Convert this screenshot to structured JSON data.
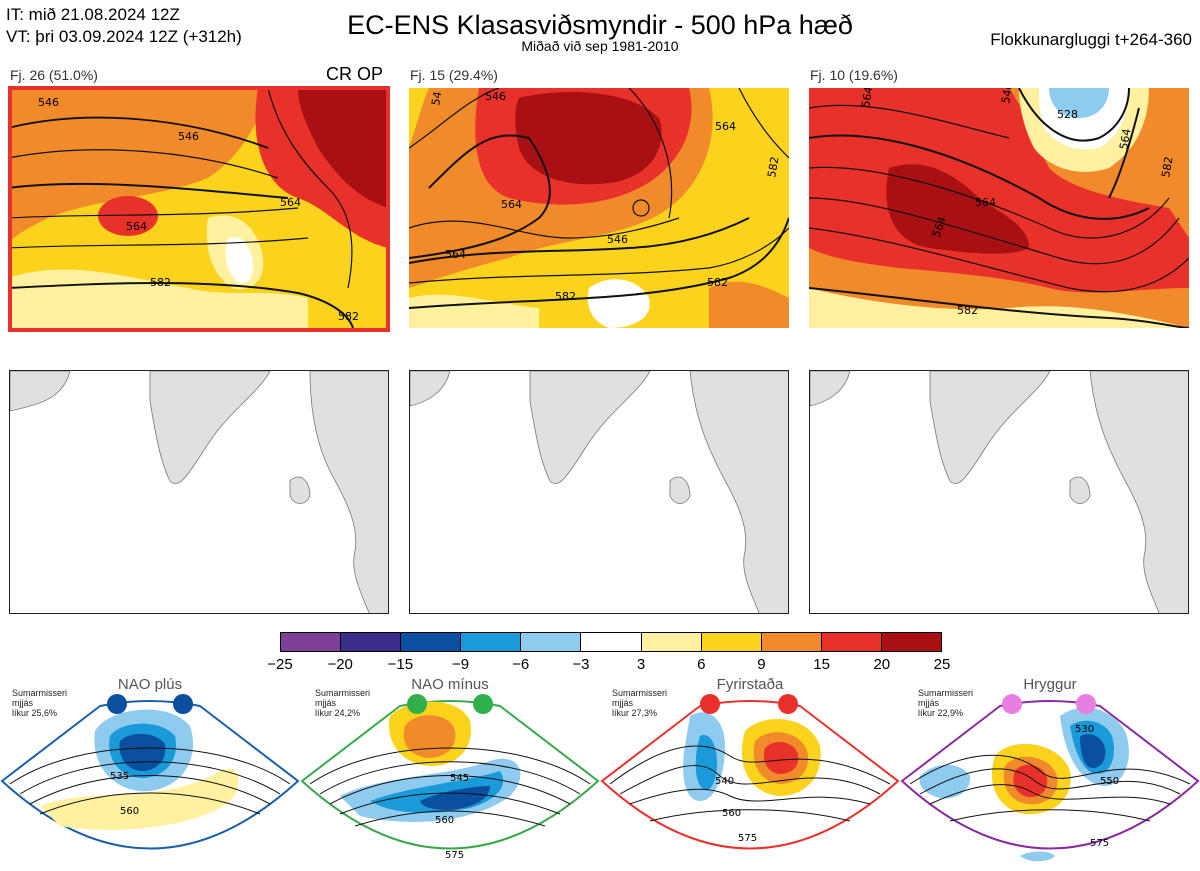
{
  "header": {
    "it_line": "IT: mið 21.08.2024 12Z",
    "vt_line": "VT: þri 03.09.2024 12Z  (+312h)",
    "title": "EC-ENS Klasasviðsmyndir - 500 hPa hæð",
    "subtitle": "Miðað við sep 1981-2010",
    "window": "Flokkunargluggi t+264-360"
  },
  "clusters": [
    {
      "label": "Fj. 26 (51.0%)",
      "tag": "CR OP",
      "contours": [
        "546",
        "546",
        "564",
        "564",
        "582",
        "582"
      ]
    },
    {
      "label": "Fj. 15 (29.4%)",
      "tag": "",
      "contours": [
        "54",
        "546",
        "564",
        "564",
        "546",
        "564",
        "582",
        "582",
        "582"
      ]
    },
    {
      "label": "Fj. 10 (19.6%)",
      "tag": "",
      "contours": [
        "546",
        "528",
        "564",
        "564",
        "564",
        "564",
        "582",
        "582"
      ]
    }
  ],
  "colorbar": {
    "ticks": [
      "−25",
      "−20",
      "−15",
      "−9",
      "−6",
      "−3",
      "3",
      "6",
      "9",
      "15",
      "20",
      "25"
    ],
    "colors": [
      "#7d3f98",
      "#3b2d8a",
      "#0a4fa0",
      "#1a9ad8",
      "#8fcbef",
      "#ffffff",
      "#fff1a0",
      "#fbd31c",
      "#f08a2b",
      "#e8312a",
      "#a81014"
    ]
  },
  "regimes": [
    {
      "name": "NAO plús",
      "line1": "Sumarmisseri",
      "line2": "mjjás",
      "line3": "líkur 25,6%",
      "contours": [
        "535",
        "560"
      ],
      "dot_color": "#0a4fa0",
      "frame_color": "#1b5fa8"
    },
    {
      "name": "NAO mínus",
      "line1": "Sumarmisseri",
      "line2": "mjjás",
      "line3": "líkur 24,2%",
      "contours": [
        "545",
        "560",
        "575"
      ],
      "dot_color": "#2fb04a",
      "frame_color": "#3aa84a"
    },
    {
      "name": "Fyrirstaða",
      "line1": "Sumarmisseri",
      "line2": "mjjás",
      "line3": "líkur 27,3%",
      "contours": [
        "540",
        "560",
        "575"
      ],
      "dot_color": "#e8312a",
      "frame_color": "#e8312a"
    },
    {
      "name": "Hryggur",
      "line1": "Sumarmisseri",
      "line2": "mjjás",
      "line3": "líkur 22,9%",
      "contours": [
        "530",
        "550",
        "575"
      ],
      "dot_color": "#e87fe0",
      "frame_color": "#8a2aa0"
    }
  ]
}
